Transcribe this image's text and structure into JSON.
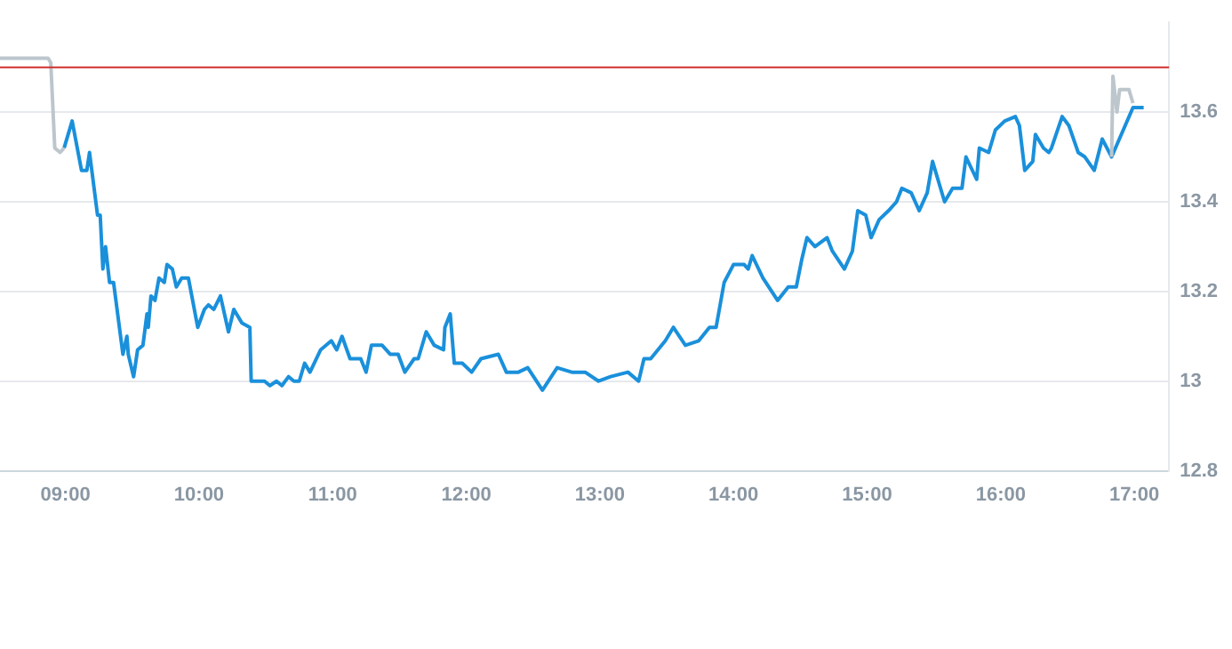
{
  "chart_data": {
    "type": "line",
    "xlim": [
      8.51,
      17.26
    ],
    "ylim": [
      12.8,
      13.8
    ],
    "xticks": [
      {
        "value": 9,
        "label": "09:00"
      },
      {
        "value": 10,
        "label": "10:00"
      },
      {
        "value": 11,
        "label": "11:00"
      },
      {
        "value": 12,
        "label": "12:00"
      },
      {
        "value": 13,
        "label": "13:00"
      },
      {
        "value": 14,
        "label": "14:00"
      },
      {
        "value": 15,
        "label": "15:00"
      },
      {
        "value": 16,
        "label": "16:00"
      },
      {
        "value": 17,
        "label": "17:00"
      }
    ],
    "yticks": [
      12.8,
      13,
      13.2,
      13.4,
      13.6
    ],
    "grid": "y",
    "legend": false,
    "marker": "none",
    "line_style": "solid",
    "ref_lines": [
      {
        "axis": "y",
        "value": 13.7,
        "color": "#d0312d"
      }
    ],
    "series": [
      {
        "color": "#bcc6cc",
        "x": [
          8.51,
          8.87,
          8.89,
          8.92,
          8.96,
          8.99
        ],
        "values": [
          13.72,
          13.72,
          13.71,
          13.52,
          13.51,
          13.52
        ]
      },
      {
        "color": "#bcc6cc",
        "x": [
          16.83,
          16.84,
          16.87,
          16.89,
          16.96,
          16.99
        ],
        "values": [
          13.5,
          13.68,
          13.6,
          13.65,
          13.65,
          13.62
        ]
      },
      {
        "color": "#1a90db",
        "x": [
          8.99,
          9.05,
          9.12,
          9.16,
          9.18,
          9.24,
          9.26,
          9.28,
          9.3,
          9.33,
          9.36,
          9.43,
          9.46,
          9.47,
          9.51,
          9.54,
          9.58,
          9.61,
          9.62,
          9.64,
          9.67,
          9.7,
          9.74,
          9.76,
          9.8,
          9.83,
          9.87,
          9.92,
          9.99,
          10.04,
          10.07,
          10.11,
          10.16,
          10.22,
          10.26,
          10.32,
          10.38,
          10.39,
          10.49,
          10.53,
          10.58,
          10.62,
          10.67,
          10.71,
          10.75,
          10.79,
          10.83,
          10.91,
          10.99,
          11.03,
          11.07,
          11.13,
          11.21,
          11.25,
          11.29,
          11.37,
          11.43,
          11.49,
          11.54,
          11.61,
          11.64,
          11.7,
          11.76,
          11.83,
          11.84,
          11.88,
          11.91,
          11.97,
          12.04,
          12.11,
          12.24,
          12.3,
          12.39,
          12.46,
          12.57,
          12.68,
          12.79,
          12.89,
          12.99,
          13.08,
          13.21,
          13.29,
          13.33,
          13.38,
          13.49,
          13.55,
          13.64,
          13.74,
          13.82,
          13.87,
          13.93,
          14,
          14.08,
          14.11,
          14.14,
          14.22,
          14.33,
          14.41,
          14.47,
          14.51,
          14.55,
          14.61,
          14.7,
          14.74,
          14.83,
          14.89,
          14.93,
          14.99,
          15.03,
          15.09,
          15.16,
          15.22,
          15.26,
          15.33,
          15.39,
          15.45,
          15.49,
          15.58,
          15.64,
          15.71,
          15.74,
          15.82,
          15.84,
          15.91,
          15.96,
          16.03,
          16.11,
          16.14,
          16.18,
          16.24,
          16.26,
          16.32,
          16.36,
          16.38,
          16.46,
          16.51,
          16.58,
          16.63,
          16.7,
          16.76,
          16.83,
          16.99,
          17.07
        ],
        "values": [
          13.52,
          13.58,
          13.47,
          13.47,
          13.51,
          13.37,
          13.37,
          13.25,
          13.3,
          13.22,
          13.22,
          13.06,
          13.1,
          13.06,
          13.01,
          13.07,
          13.08,
          13.15,
          13.12,
          13.19,
          13.18,
          13.23,
          13.22,
          13.26,
          13.25,
          13.21,
          13.23,
          13.23,
          13.12,
          13.16,
          13.17,
          13.16,
          13.19,
          13.11,
          13.16,
          13.13,
          13.12,
          13,
          13,
          12.99,
          13,
          12.99,
          13.01,
          13,
          13,
          13.04,
          13.02,
          13.07,
          13.09,
          13.07,
          13.1,
          13.05,
          13.05,
          13.02,
          13.08,
          13.08,
          13.06,
          13.06,
          13.02,
          13.05,
          13.05,
          13.11,
          13.08,
          13.07,
          13.12,
          13.15,
          13.04,
          13.04,
          13.02,
          13.05,
          13.06,
          13.02,
          13.02,
          13.03,
          12.98,
          13.03,
          13.02,
          13.02,
          13,
          13.01,
          13.02,
          13,
          13.05,
          13.05,
          13.09,
          13.12,
          13.08,
          13.09,
          13.12,
          13.12,
          13.22,
          13.26,
          13.26,
          13.25,
          13.28,
          13.23,
          13.18,
          13.21,
          13.21,
          13.27,
          13.32,
          13.3,
          13.32,
          13.29,
          13.25,
          13.29,
          13.38,
          13.37,
          13.32,
          13.36,
          13.38,
          13.4,
          13.43,
          13.42,
          13.38,
          13.42,
          13.49,
          13.4,
          13.43,
          13.43,
          13.5,
          13.45,
          13.52,
          13.51,
          13.56,
          13.58,
          13.59,
          13.57,
          13.47,
          13.49,
          13.55,
          13.52,
          13.51,
          13.52,
          13.59,
          13.57,
          13.51,
          13.5,
          13.47,
          13.54,
          13.5,
          13.61,
          13.61
        ]
      }
    ]
  }
}
